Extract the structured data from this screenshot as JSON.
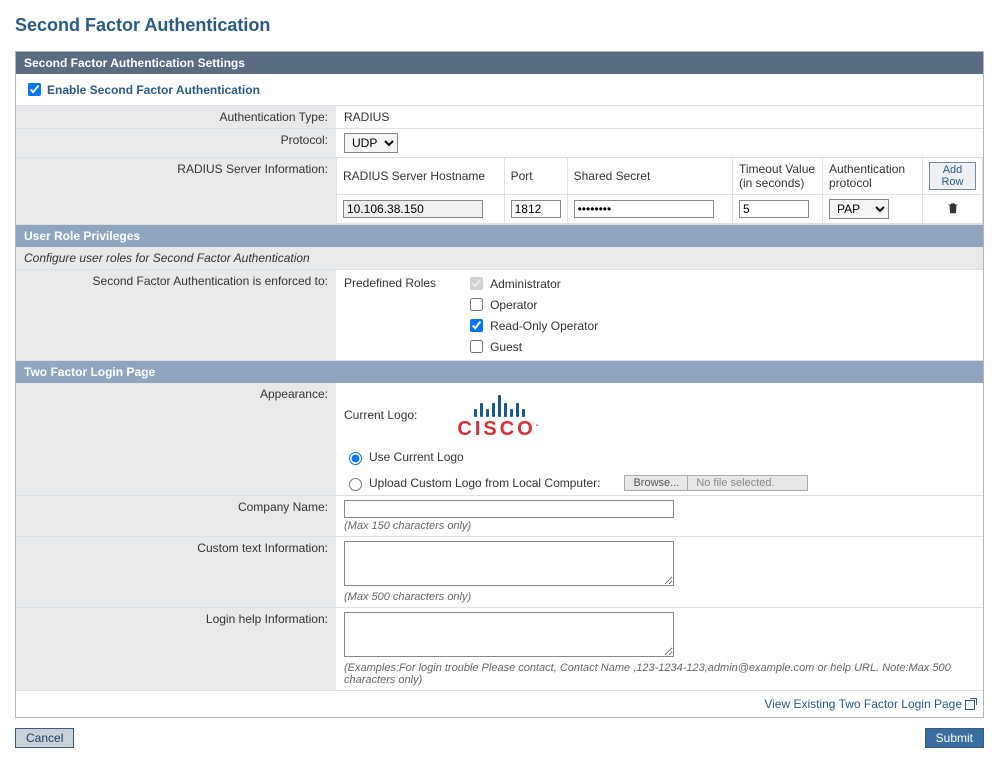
{
  "page_title": "Second Factor Authentication",
  "sections": {
    "settings_header": "Second Factor Authentication Settings",
    "user_roles_header": "User Role Privileges",
    "login_page_header": "Two Factor Login Page"
  },
  "enable": {
    "label": "Enable Second Factor Authentication",
    "checked": true
  },
  "auth_type": {
    "label": "Authentication Type:",
    "value": "RADIUS"
  },
  "protocol": {
    "label": "Protocol:",
    "options": [
      "UDP"
    ],
    "selected": "UDP"
  },
  "radius": {
    "label": "RADIUS Server Information:",
    "columns": {
      "hostname": "RADIUS Server Hostname",
      "port": "Port",
      "secret": "Shared Secret",
      "timeout": "Timeout Value (in seconds)",
      "auth_proto": "Authentication protocol"
    },
    "add_row_label": "Add Row",
    "rows": [
      {
        "hostname": "10.106.38.150",
        "port": "1812",
        "secret": "••••••••",
        "timeout": "5",
        "auth_proto": "PAP",
        "auth_proto_options": [
          "PAP"
        ]
      }
    ]
  },
  "user_roles": {
    "note": "Configure user roles for Second Factor Authentication",
    "enforced_label": "Second Factor Authentication is enforced to:",
    "predefined_label": "Predefined Roles",
    "roles": [
      {
        "name": "Administrator",
        "checked": true,
        "disabled": true
      },
      {
        "name": "Operator",
        "checked": false,
        "disabled": false
      },
      {
        "name": "Read-Only Operator",
        "checked": true,
        "disabled": false
      },
      {
        "name": "Guest",
        "checked": false,
        "disabled": false
      }
    ]
  },
  "appearance": {
    "label": "Appearance:",
    "current_logo_label": "Current Logo:",
    "logo_text": "CISCO",
    "use_current_label": "Use Current Logo",
    "upload_label": "Upload Custom Logo from Local Computer:",
    "browse_label": "Browse...",
    "no_file_label": "No file selected.",
    "selected_option": "current"
  },
  "company": {
    "label": "Company Name:",
    "value": "",
    "hint": "(Max 150 characters only)"
  },
  "custom_text": {
    "label": "Custom text Information:",
    "value": "",
    "hint": "(Max 500 characters only)"
  },
  "login_help": {
    "label": "Login help Information:",
    "value": "",
    "hint": "(Examples:For login trouble Please contact, Contact Name ,123-1234-123,admin@example.com or help URL. Note:Max 500 characters only)"
  },
  "view_existing_link": "View Existing Two Factor Login Page",
  "buttons": {
    "cancel": "Cancel",
    "submit": "Submit"
  },
  "colors": {
    "title": "#2a5b88",
    "header_dark": "#5b6b80",
    "header_light": "#8fa6be",
    "panel_bg": "#e8e9eb",
    "border": "#dcdfe3",
    "cisco_red": "#d83033",
    "cisco_blue": "#1a5a8a",
    "submit_bg": "#3a6da0"
  }
}
